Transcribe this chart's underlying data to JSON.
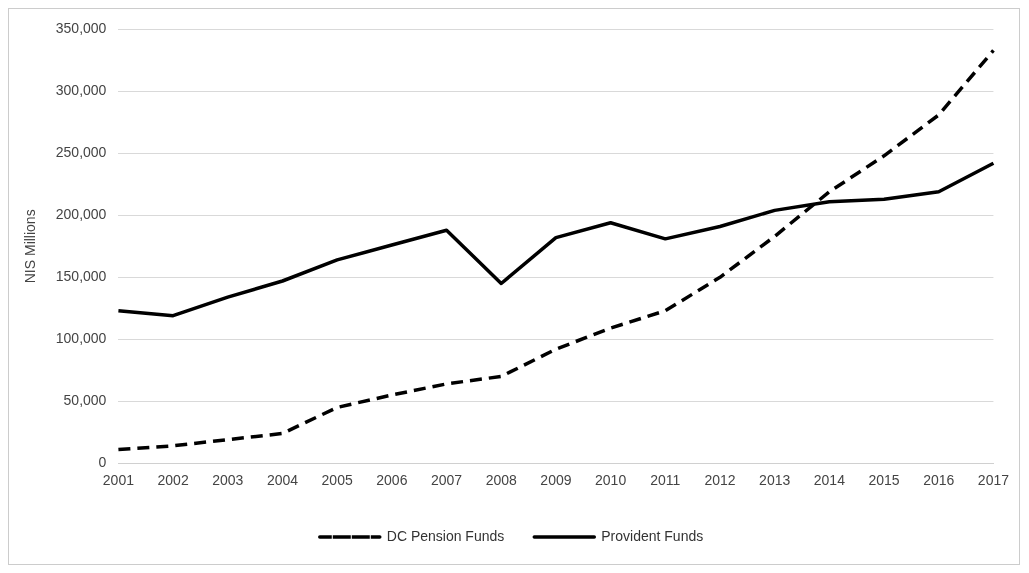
{
  "chart_data": {
    "type": "line",
    "ylabel": "NIS Millions",
    "categories": [
      "2001",
      "2002",
      "2003",
      "2004",
      "2005",
      "2006",
      "2007",
      "2008",
      "2009",
      "2010",
      "2011",
      "2012",
      "2013",
      "2014",
      "2015",
      "2016",
      "2017"
    ],
    "series": [
      {
        "name": "DC Pension Funds",
        "color": "#000000",
        "line_style": "dashed",
        "values": [
          11000,
          14000,
          19000,
          24000,
          45000,
          55000,
          64000,
          70000,
          92000,
          109000,
          123000,
          150000,
          183000,
          219000,
          248000,
          281000,
          333000
        ]
      },
      {
        "name": "Provident Funds",
        "color": "#000000",
        "line_style": "solid",
        "values": [
          123000,
          119000,
          134000,
          147000,
          164000,
          176000,
          188000,
          145000,
          182000,
          194000,
          181000,
          191000,
          204000,
          211000,
          213000,
          219000,
          242000
        ]
      }
    ],
    "ylim": [
      0,
      350000
    ],
    "yticks": [
      0,
      {
        "value": 50000,
        "label": "50,000"
      },
      {
        "value": 100000,
        "label": "100,000"
      },
      {
        "value": 150000,
        "label": "150,000"
      },
      {
        "value": 200000,
        "label": "200,000"
      },
      {
        "value": 250000,
        "label": "250,000"
      },
      {
        "value": 300000,
        "label": "300,000"
      },
      {
        "value": 350000,
        "label": "350,000"
      }
    ],
    "grid": "y",
    "legend": "bottom",
    "marker": "none"
  }
}
